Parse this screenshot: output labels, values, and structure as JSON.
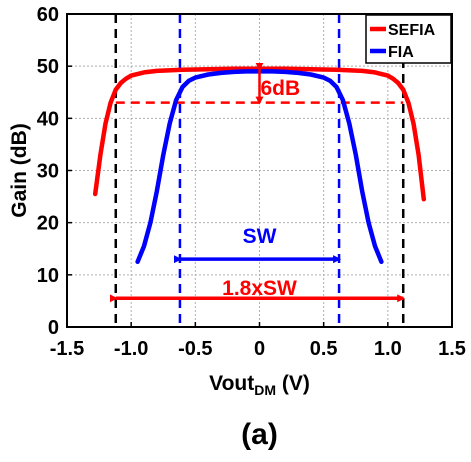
{
  "chart_data": {
    "type": "line",
    "title": "",
    "xlabel": "Vout",
    "xlabel_sub": "DM",
    "xlabel_unit": " (V)",
    "ylabel": "Gain (dB)",
    "xlim": [
      -1.5,
      1.5
    ],
    "ylim": [
      0,
      60
    ],
    "xticks": [
      -1.5,
      -1.0,
      -0.5,
      0,
      0.5,
      1.0,
      1.5
    ],
    "xtick_labels": [
      "-1.5",
      "-1.0",
      "-0.5",
      "0",
      "0.5",
      "1.0",
      "1.5"
    ],
    "yticks": [
      0,
      10,
      20,
      30,
      40,
      50,
      60
    ],
    "ytick_labels": [
      "0",
      "10",
      "20",
      "30",
      "40",
      "50",
      "60"
    ],
    "grid": true,
    "legend_position": "top-right",
    "series": [
      {
        "name": "SEFIA",
        "color": "#ff0000",
        "x": [
          -1.28,
          -1.24,
          -1.2,
          -1.16,
          -1.12,
          -1.08,
          -1.04,
          -1.0,
          -0.9,
          -0.8,
          -0.6,
          -0.4,
          -0.2,
          0,
          0.2,
          0.4,
          0.6,
          0.8,
          0.9,
          1.0,
          1.04,
          1.08,
          1.12,
          1.16,
          1.2,
          1.24,
          1.28
        ],
        "y": [
          25.5,
          33,
          39,
          43,
          45.5,
          46.8,
          47.6,
          48.2,
          48.8,
          49.1,
          49.3,
          49.4,
          49.5,
          49.5,
          49.5,
          49.4,
          49.3,
          49.1,
          48.8,
          48.2,
          47.6,
          46.8,
          45.5,
          43,
          39,
          33,
          24.5
        ]
      },
      {
        "name": "FIA",
        "color": "#0000ff",
        "x": [
          -0.95,
          -0.9,
          -0.85,
          -0.8,
          -0.75,
          -0.7,
          -0.65,
          -0.6,
          -0.55,
          -0.5,
          -0.4,
          -0.3,
          -0.2,
          -0.1,
          0,
          0.1,
          0.2,
          0.3,
          0.4,
          0.5,
          0.55,
          0.6,
          0.65,
          0.7,
          0.75,
          0.8,
          0.85,
          0.9,
          0.95
        ],
        "y": [
          12.5,
          15.5,
          20,
          26,
          33,
          39,
          43.5,
          46,
          47.2,
          47.8,
          48.4,
          48.7,
          48.9,
          49.0,
          49.0,
          49.0,
          48.9,
          48.7,
          48.4,
          47.8,
          47.2,
          46,
          43.5,
          39,
          33,
          26,
          20,
          15.5,
          12.5
        ]
      }
    ],
    "reference_lines": {
      "black_dashed_x": [
        -1.12,
        1.12
      ],
      "blue_dashed_x": [
        -0.62,
        0.62
      ],
      "red_dashed_y": 43
    },
    "annotations": [
      {
        "text": "6dB",
        "color": "#ff0000",
        "x": 0.0,
        "y": 46,
        "arrow_from_y": 49.5,
        "arrow_to_y": 43
      },
      {
        "text": "SW",
        "color": "#0000ff",
        "x": 0.0,
        "y": 16.5,
        "arrow_from_x": -0.62,
        "arrow_to_x": 0.62,
        "arrow_y": 13
      },
      {
        "text": "1.8xSW",
        "color": "#ff0000",
        "x": 0.0,
        "y": 6.5,
        "arrow_from_x": -1.12,
        "arrow_to_x": 1.12,
        "arrow_y": 5.5
      }
    ]
  },
  "caption": "(a)"
}
